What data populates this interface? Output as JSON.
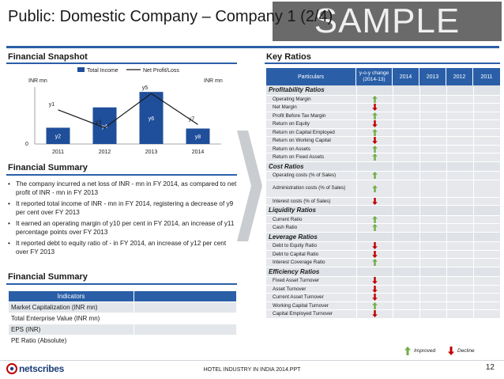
{
  "slide": {
    "title": "Public: Domestic Company – Company 1 (2/4)",
    "watermark": "SAMPLE",
    "page_number": "12",
    "footer_text": "HOTEL INDUSTRY IN INDIA 2014.PPT",
    "logo_text": "netscribes"
  },
  "colors": {
    "accent": "#2a5fa8",
    "bar": "#1f4e9a",
    "up": "#70ad47",
    "down": "#c00000"
  },
  "snapshot": {
    "heading": "Financial Snapshot",
    "legend_income": "Total Income",
    "legend_profit": "Net Profit/Loss",
    "y_left_label": "INR mn",
    "y_right_label": "INR mn",
    "y_zero": "0"
  },
  "chart_data": {
    "type": "bar",
    "title": "Financial Snapshot",
    "categories": [
      "2011",
      "2012",
      "2013",
      "2014"
    ],
    "series": [
      {
        "name": "Total Income",
        "kind": "bar",
        "values": [
          20,
          45,
          64,
          19
        ],
        "labels": [
          "y2",
          "y4",
          "y6",
          "y8"
        ]
      },
      {
        "name": "Net Profit/Loss",
        "kind": "line",
        "values": [
          42,
          20,
          62,
          24
        ],
        "labels": [
          "y1",
          "y3",
          "y5",
          "y7"
        ]
      }
    ],
    "xlabel": "",
    "ylabel": "INR mn",
    "ylim": [
      0,
      70
    ]
  },
  "summary": {
    "heading": "Financial Summary",
    "bullets": [
      "The company incurred a net loss of INR - mn in FY 2014, as compared to net profit of INR - mn in FY 2013",
      "It reported total income of INR - mn in FY 2014, registering a decrease of y9 per cent over FY 2013",
      "It earned an operating margin of y10 per cent in FY 2014, an increase of y11 percentage points over FY 2013",
      "It reported debt to equity ratio of - in FY 2014, an increase of y12 per cent over FY 2013"
    ]
  },
  "indicators": {
    "heading": "Financial Summary",
    "header": "Indicators",
    "rows": [
      {
        "label": "Market Capitalization (INR mn)",
        "value": ""
      },
      {
        "label": "Total Enterprise Value (INR mn)",
        "value": ""
      },
      {
        "label": "EPS (INR)",
        "value": ""
      },
      {
        "label": "PE Ratio (Absolute)",
        "value": ""
      }
    ]
  },
  "ratios": {
    "heading": "Key Ratios",
    "col_particulars": "Particulars",
    "col_yoy": "y-o-y change (2014-13)",
    "col_years": [
      "2014",
      "2013",
      "2012",
      "2011"
    ],
    "legend_improved": "Improved",
    "legend_decline": "Decline",
    "groups": [
      {
        "name": "Profitability Ratios",
        "rows": [
          {
            "label": "Operating Margin",
            "trend": "up"
          },
          {
            "label": "Net Margin",
            "trend": "down"
          },
          {
            "label": "Profit Before Tax Margin",
            "trend": "up"
          },
          {
            "label": "Return on Equity",
            "trend": "down"
          },
          {
            "label": "Return on Capital Employed",
            "trend": "up"
          },
          {
            "label": "Return on Working Capital",
            "trend": "down"
          },
          {
            "label": "Return on Assets",
            "trend": "up"
          },
          {
            "label": "Return on Fixed Assets",
            "trend": "up"
          }
        ]
      },
      {
        "name": "Cost Ratios",
        "rows": [
          {
            "label": "Operating costs (% of Sales)",
            "trend": "up"
          },
          {
            "label": "Administration costs (% of Sales)",
            "trend": "up",
            "tall": true
          },
          {
            "label": "Interest costs (% of Sales)",
            "trend": "down"
          }
        ]
      },
      {
        "name": "Liquidity Ratios",
        "rows": [
          {
            "label": "Current Ratio",
            "trend": "up"
          },
          {
            "label": "Cash Ratio",
            "trend": "up"
          }
        ]
      },
      {
        "name": "Leverage Ratios",
        "rows": [
          {
            "label": "Debt to Equity Ratio",
            "trend": "down"
          },
          {
            "label": "Debt to Capital Ratio",
            "trend": "down"
          },
          {
            "label": "Interest Coverage Ratio",
            "trend": "up"
          }
        ]
      },
      {
        "name": "Efficiency Ratios",
        "rows": [
          {
            "label": "Fixed Asset Turnover",
            "trend": "down"
          },
          {
            "label": "Asset Turnover",
            "trend": "down"
          },
          {
            "label": "Current Asset Turnover",
            "trend": "down"
          },
          {
            "label": "Working Capital Turnover",
            "trend": "up"
          },
          {
            "label": "Capital Employed Turnover",
            "trend": "down"
          }
        ]
      }
    ]
  }
}
